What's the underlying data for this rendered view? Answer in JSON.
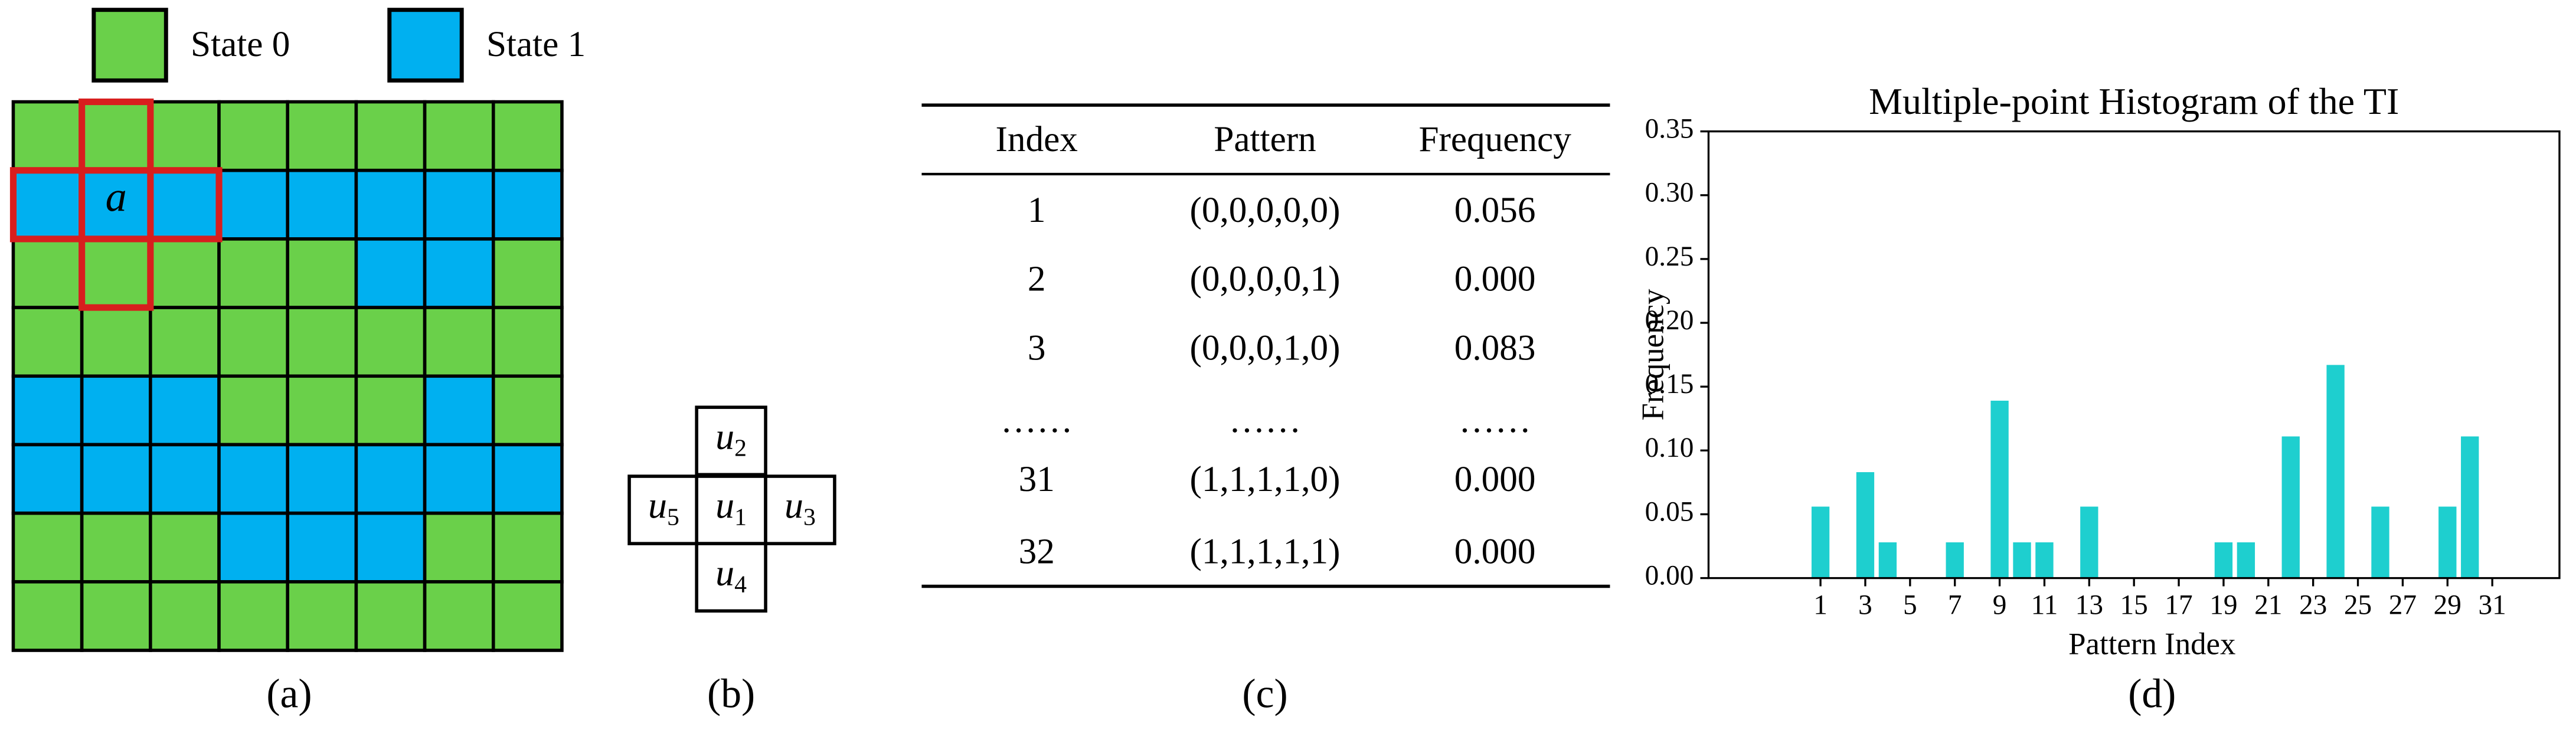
{
  "legend": {
    "items": [
      {
        "label": "State 0",
        "color": "#6ad04a"
      },
      {
        "label": "State 1",
        "color": "#00b0f0"
      }
    ]
  },
  "grid": {
    "label": "a",
    "states": [
      [
        0,
        0,
        0,
        0,
        0,
        0,
        0,
        0
      ],
      [
        1,
        1,
        1,
        1,
        1,
        1,
        1,
        1
      ],
      [
        0,
        0,
        0,
        0,
        0,
        1,
        1,
        0
      ],
      [
        0,
        0,
        0,
        0,
        0,
        0,
        0,
        0
      ],
      [
        1,
        1,
        1,
        0,
        0,
        0,
        1,
        0
      ],
      [
        1,
        1,
        1,
        1,
        1,
        1,
        1,
        1
      ],
      [
        0,
        0,
        0,
        1,
        1,
        1,
        0,
        0
      ],
      [
        0,
        0,
        0,
        0,
        0,
        0,
        0,
        0
      ]
    ]
  },
  "stencil": {
    "cells": [
      {
        "symbol": "u",
        "index": "2"
      },
      {
        "symbol": "u",
        "index": "5"
      },
      {
        "symbol": "u",
        "index": "1"
      },
      {
        "symbol": "u",
        "index": "3"
      },
      {
        "symbol": "u",
        "index": "4"
      }
    ]
  },
  "table": {
    "header": [
      "Index",
      "Pattern",
      "Frequency"
    ],
    "rows": [
      [
        "1",
        "(0,0,0,0,0)",
        "0.056"
      ],
      [
        "2",
        "(0,0,0,0,1)",
        "0.000"
      ],
      [
        "3",
        "(0,0,0,1,0)",
        "0.083"
      ],
      [
        "……",
        "……",
        "……"
      ],
      [
        "31",
        "(1,1,1,1,0)",
        "0.000"
      ],
      [
        "32",
        "(1,1,1,1,1)",
        "0.000"
      ]
    ]
  },
  "chart_data": {
    "type": "bar",
    "title": "Multiple-point Histogram of the TI",
    "x_label": "Pattern Index",
    "y_label": "Frequency",
    "color": "#1ecfcf",
    "x": [
      1,
      2,
      3,
      4,
      5,
      6,
      7,
      8,
      9,
      10,
      11,
      12,
      13,
      14,
      15,
      16,
      17,
      18,
      19,
      20,
      21,
      22,
      23,
      24,
      25,
      26,
      27,
      28,
      29,
      30,
      31,
      32
    ],
    "values": [
      0.056,
      0,
      0.083,
      0.028,
      0,
      0,
      0.028,
      0,
      0.139,
      0.028,
      0.028,
      0,
      0.056,
      0,
      0,
      0,
      0,
      0,
      0.028,
      0.028,
      0,
      0.111,
      0,
      0.167,
      0,
      0.056,
      0,
      0,
      0.056,
      0.111,
      0,
      0
    ],
    "xlim": [
      -4,
      34
    ],
    "xticks": [
      1,
      3,
      5,
      7,
      9,
      11,
      13,
      15,
      17,
      19,
      21,
      23,
      25,
      27,
      29,
      31
    ],
    "ylim": [
      0,
      0.35
    ],
    "yticks": [
      {
        "value": 0,
        "label": "0.00"
      },
      {
        "value": 0.05,
        "label": "0.05"
      },
      {
        "value": 0.1,
        "label": "0.10"
      },
      {
        "value": 0.15,
        "label": "0.15"
      },
      {
        "value": 0.2,
        "label": "0.20"
      },
      {
        "value": 0.25,
        "label": "0.25"
      },
      {
        "value": 0.3,
        "label": "0.30"
      },
      {
        "value": 0.35,
        "label": "0.35"
      }
    ]
  },
  "captions": [
    "(a)",
    "(b)",
    "(c)",
    "(d)"
  ]
}
